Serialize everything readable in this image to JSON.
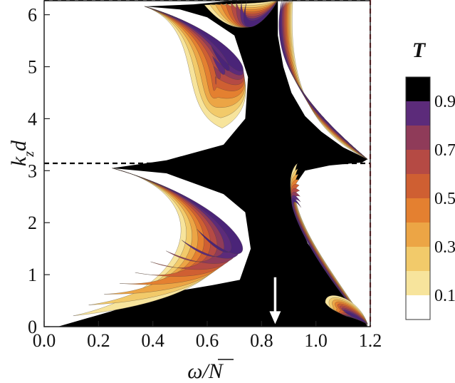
{
  "chart_data": {
    "type": "contour",
    "xlabel": "ω/N",
    "ylabel": "k_z d",
    "xlim": [
      0.0,
      1.2
    ],
    "ylim": [
      0,
      6.283
    ],
    "x_ticks": [
      "0.0",
      "0.2",
      "0.4",
      "0.6",
      "0.8",
      "1.0",
      "1.2"
    ],
    "y_ticks": [
      "0",
      "1",
      "2",
      "3",
      "4",
      "5",
      "6"
    ],
    "reference_lines": [
      {
        "orientation": "horizontal",
        "value": 3.1416,
        "style": "dashed",
        "color": "#000000"
      },
      {
        "orientation": "horizontal",
        "value": 6.2832,
        "style": "dashed",
        "color": "#000000"
      },
      {
        "orientation": "vertical",
        "value": 1.2,
        "style": "dashed",
        "color": "#c0202a"
      }
    ],
    "annotation_arrow": {
      "x": 0.85,
      "y_from": 0.95,
      "y_to": 0.05,
      "color": "#ffffff"
    },
    "colorbar": {
      "title": "T",
      "tick_labels": [
        "0.1",
        "0.3",
        "0.5",
        "0.7",
        "0.9"
      ],
      "levels": [
        0,
        0.1,
        0.2,
        0.3,
        0.4,
        0.5,
        0.6,
        0.7,
        0.8,
        0.9,
        1.0
      ],
      "colors": [
        "#ffffff",
        "#f7e49c",
        "#f2ca6a",
        "#eca545",
        "#e48030",
        "#cf5f32",
        "#b54a44",
        "#8f3b59",
        "#5c2b7a",
        "#4a2478",
        "#000000"
      ]
    },
    "bands": [
      {
        "name": "upper-left band",
        "tip": [
          0.37,
          6.16
        ],
        "outer_end": [
          0.66,
          3.66
        ],
        "inner_end": [
          0.72,
          3.3
        ]
      },
      {
        "name": "lower-left band",
        "tip": [
          0.25,
          3.05
        ],
        "outer_end": [
          0.05,
          0.0
        ],
        "inner_end": [
          0.72,
          0.86
        ]
      },
      {
        "name": "upper-right band",
        "tip": [
          1.19,
          3.22
        ],
        "outer_end": [
          0.92,
          6.28
        ],
        "inner_end": [
          0.86,
          6.28
        ]
      },
      {
        "name": "lower-right band",
        "tip": [
          1.19,
          0.0
        ],
        "outer_end": [
          0.92,
          3.14
        ],
        "inner_end": [
          0.91,
          3.3
        ]
      },
      {
        "name": "small lobe",
        "tip": [
          1.19,
          0.1
        ],
        "outer_end": [
          1.02,
          0.55
        ],
        "inner_end": [
          1.05,
          0.5
        ]
      },
      {
        "name": "top band",
        "tip": [
          0.78,
          6.28
        ],
        "outer_end": [
          0.55,
          6.1
        ],
        "inner_end": [
          0.6,
          5.9
        ]
      }
    ]
  }
}
